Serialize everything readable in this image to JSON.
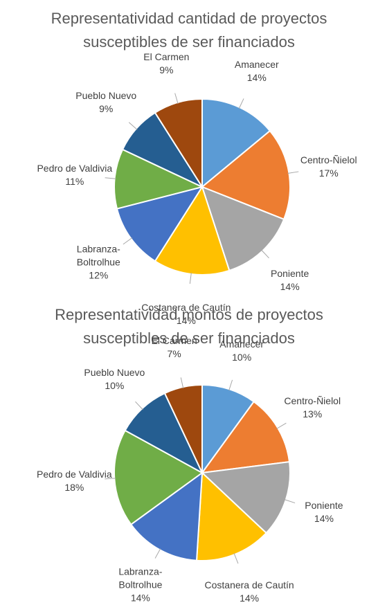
{
  "chart_data": [
    {
      "type": "pie",
      "title": "Representatividad cantidad de proyectos\nsusceptibles de ser financiados",
      "categories": [
        "Amanecer",
        "Centro-Ñielol",
        "Poniente",
        "Costanera de Cautín",
        "Labranza-\nBoltrolhue",
        "Pedro de Valdivia",
        "Pueblo Nuevo",
        "El Carmen"
      ],
      "values": [
        14,
        17,
        14,
        14,
        12,
        11,
        9,
        9
      ],
      "value_labels": [
        "14%",
        "17%",
        "14%",
        "14%",
        "12%",
        "11%",
        "9%",
        "9%"
      ],
      "colors": [
        "#5b9bd5",
        "#ed7d31",
        "#a5a5a5",
        "#ffc000",
        "#4472c4",
        "#70ad47",
        "#255e91",
        "#9e480e"
      ]
    },
    {
      "type": "pie",
      "title": "Representatividad montos de proyectos\nsusceptibles de ser financiados",
      "categories": [
        "Amanecer",
        "Centro-Ñielol",
        "Poniente",
        "Costanera de Cautín",
        "Labranza-\nBoltrolhue",
        "Pedro de Valdivia",
        "Pueblo Nuevo",
        "El Carmen"
      ],
      "values": [
        10,
        13,
        14,
        14,
        14,
        18,
        10,
        7
      ],
      "value_labels": [
        "10%",
        "13%",
        "14%",
        "14%",
        "14%",
        "18%",
        "10%",
        "7%"
      ],
      "colors": [
        "#5b9bd5",
        "#ed7d31",
        "#a5a5a5",
        "#ffc000",
        "#4472c4",
        "#70ad47",
        "#255e91",
        "#9e480e"
      ]
    }
  ]
}
